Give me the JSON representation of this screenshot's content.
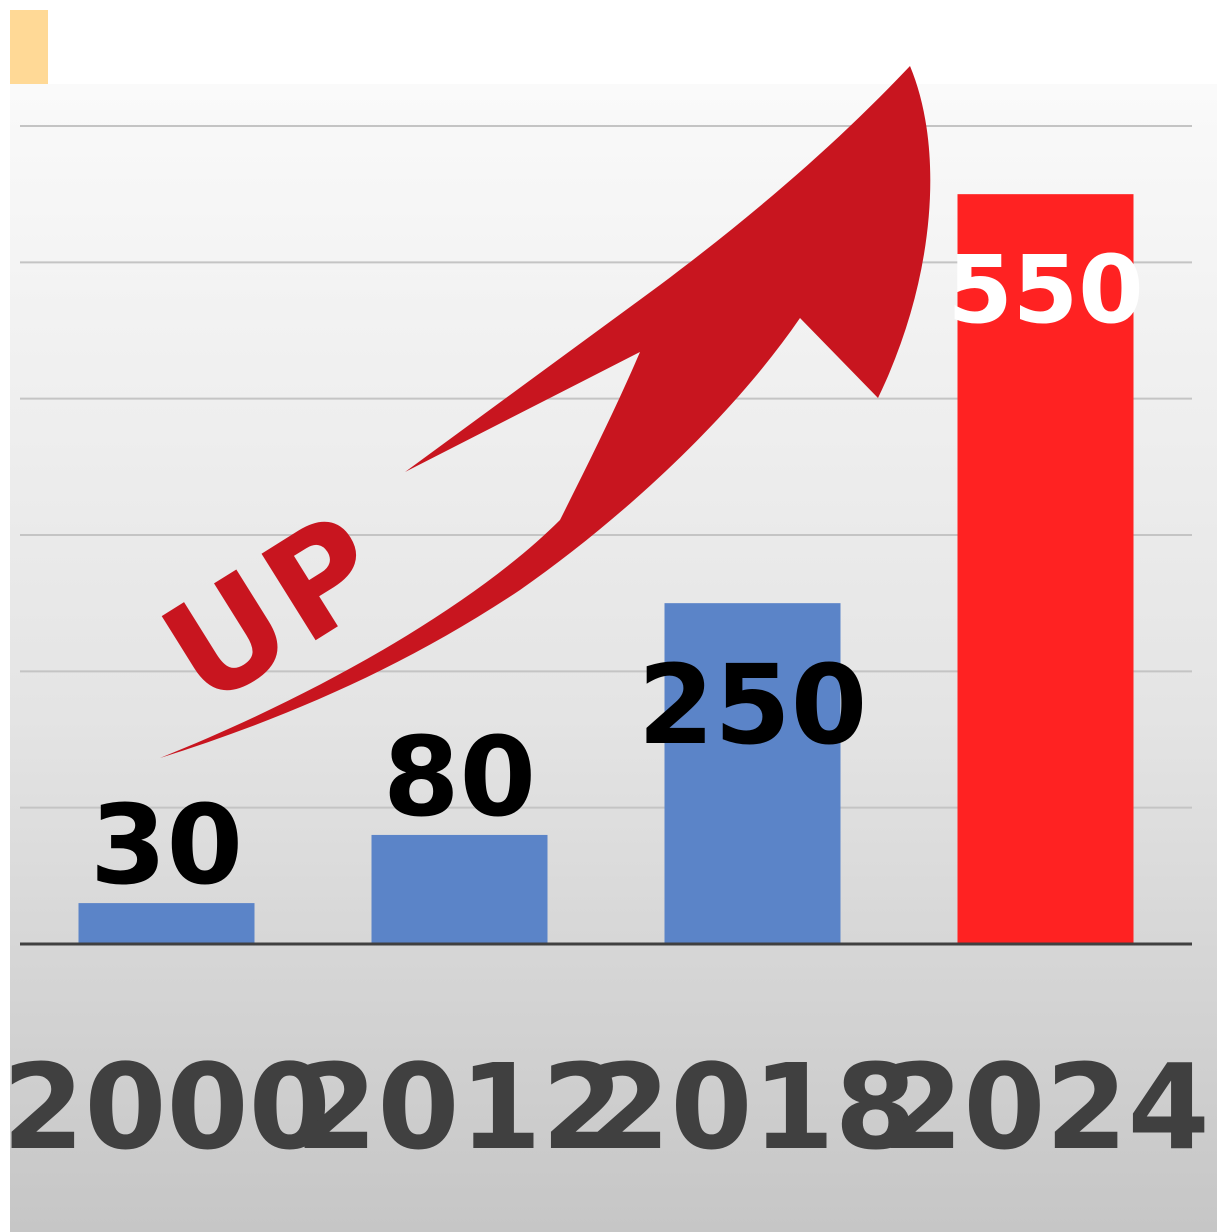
{
  "chart_data": {
    "type": "bar",
    "categories": [
      "2000",
      "2012",
      "2018",
      "2024"
    ],
    "values": [
      30,
      80,
      250,
      550
    ],
    "value_labels": [
      "30",
      "80",
      "250",
      "550"
    ],
    "ylim": [
      0,
      600
    ],
    "grid": true,
    "bar_colors": [
      "#5b84c8",
      "#5b84c8",
      "#5b84c8",
      "#ff2222"
    ],
    "label_colors": [
      "#000000",
      "#000000",
      "#000000",
      "#ffffff"
    ],
    "annotation": "UP",
    "annotation_icon": "rising-arrow-icon",
    "annotation_color": "#c8151f",
    "axis_label_color": "#404040"
  }
}
